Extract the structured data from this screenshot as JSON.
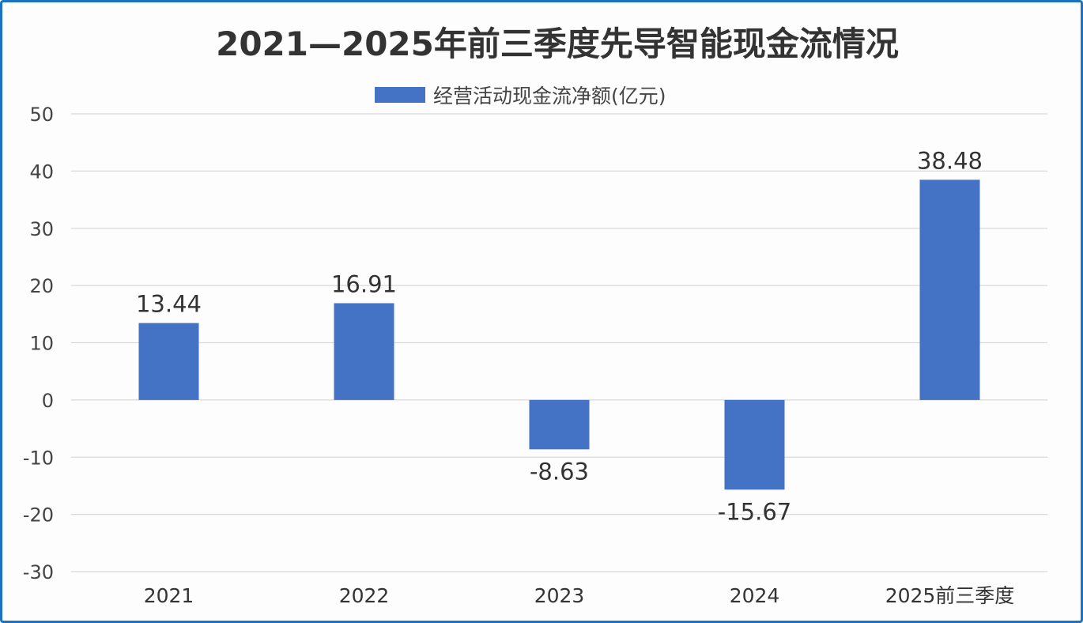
{
  "chart_data": {
    "type": "bar",
    "title": "2021—2025年前三季度先导智能现金流情况",
    "categories": [
      "2021",
      "2022",
      "2023",
      "2024",
      "2025前三季度"
    ],
    "series": [
      {
        "name": "经营活动现金流净额(亿元)",
        "values": [
          13.44,
          16.91,
          -8.63,
          -15.67,
          38.48
        ],
        "color": "#4472c4"
      }
    ],
    "data_labels": [
      "13.44",
      "16.91",
      "-8.63",
      "-15.67",
      "38.48"
    ],
    "ylim": [
      -30,
      50
    ],
    "yticks": [
      50,
      40,
      30,
      20,
      10,
      0,
      -10,
      -20,
      -30
    ],
    "grid": true,
    "legend": "top-center",
    "xlabel": "",
    "ylabel": ""
  },
  "colors": {
    "border": "#1a72c2",
    "bar": "#4472c4",
    "grid": "#d9d9d9",
    "text": "#333333"
  }
}
